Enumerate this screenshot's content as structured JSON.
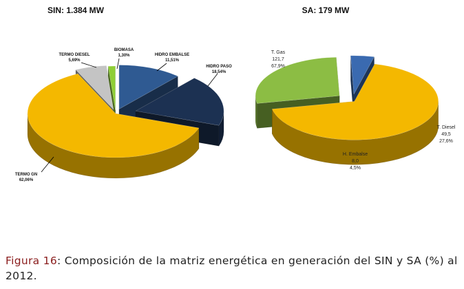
{
  "chart_data": [
    {
      "type": "pie",
      "title": "SIN: 1.384 MW",
      "slices": [
        {
          "label": "HIDRO  EMBALSE",
          "value_label": "11,51%",
          "value": 11.51,
          "color": "#2f5a92"
        },
        {
          "label": "HIDRO  PASO",
          "value_label": "18,54%",
          "value": 18.54,
          "color": "#1c3152"
        },
        {
          "label": "TERMO GN",
          "value_label": "62,06%",
          "value": 62.06,
          "color": "#f4b800"
        },
        {
          "label": "TERMO DIESEL",
          "value_label": "5,69%",
          "value": 5.69,
          "color": "#c4c4c4"
        },
        {
          "label": "BIOMASA",
          "value_label": "1,30%",
          "value": 1.3,
          "color": "#8fce36"
        }
      ]
    },
    {
      "type": "pie",
      "title": "SA: 179 MW",
      "slices": [
        {
          "label": "T. Gas",
          "amount": "121,7",
          "value_label": "67,9%",
          "value": 67.9,
          "color": "#f4b800"
        },
        {
          "label": "T. Diesel",
          "amount": "49,5",
          "value_label": "27,6%",
          "value": 27.6,
          "color": "#8cbd44"
        },
        {
          "label": "H. Embalse",
          "amount": "8,0",
          "value_label": "4,5%",
          "value": 4.5,
          "color": "#3a6ab0"
        }
      ]
    }
  ],
  "caption": {
    "figure_label": "Figura 16",
    "text": ": Composición de la matriz energética en generación del SIN y SA (%) al 2012."
  }
}
